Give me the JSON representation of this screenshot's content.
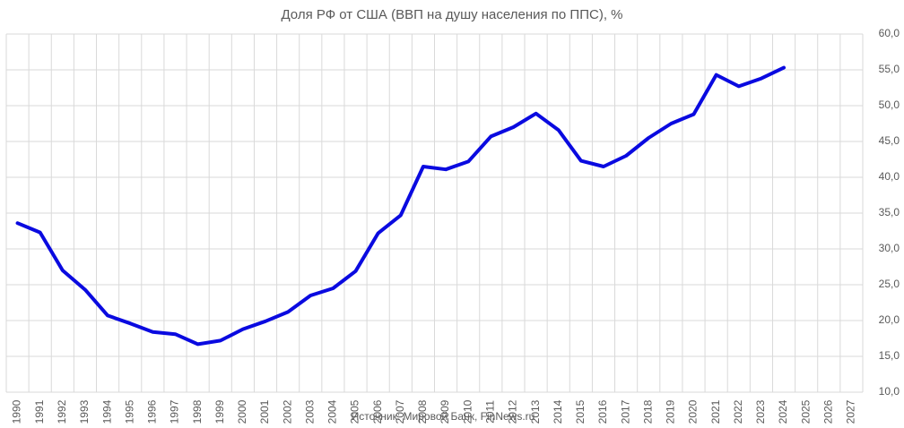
{
  "chart_data": {
    "type": "line",
    "title": "Доля РФ от США (ВВП на душу населения по ППС), %",
    "source": "Источник: Мировой Банк, FinNews.ru",
    "categories": [
      "1990",
      "1991",
      "1992",
      "1993",
      "1994",
      "1995",
      "1996",
      "1997",
      "1998",
      "1999",
      "2000",
      "2001",
      "2002",
      "2003",
      "2004",
      "2005",
      "2006",
      "2007",
      "2008",
      "2009",
      "2010",
      "2011",
      "2012",
      "2013",
      "2014",
      "2015",
      "2016",
      "2017",
      "2018",
      "2019",
      "2020",
      "2021",
      "2022",
      "2023",
      "2024",
      "2025",
      "2026",
      "2027"
    ],
    "values": [
      33.6,
      32.3,
      27.0,
      24.3,
      20.7,
      19.6,
      18.4,
      18.1,
      16.7,
      17.2,
      18.8,
      19.9,
      21.2,
      23.5,
      24.5,
      26.9,
      32.2,
      34.7,
      41.5,
      41.1,
      42.2,
      45.7,
      47.0,
      48.9,
      46.6,
      42.3,
      41.5,
      43.0,
      45.5,
      47.5,
      48.8,
      54.3,
      52.7,
      53.8,
      55.3,
      null,
      null,
      null
    ],
    "color": "#0a0ae0",
    "ylim": [
      10,
      60
    ],
    "yticks": [
      {
        "value": 10,
        "label": "10,0"
      },
      {
        "value": 15,
        "label": "15,0"
      },
      {
        "value": 20,
        "label": "20,0"
      },
      {
        "value": 25,
        "label": "25,0"
      },
      {
        "value": 30,
        "label": "30,0"
      },
      {
        "value": 35,
        "label": "35,0"
      },
      {
        "value": 40,
        "label": "40,0"
      },
      {
        "value": 45,
        "label": "45,0"
      },
      {
        "value": 50,
        "label": "50,0"
      },
      {
        "value": 55,
        "label": "55,0"
      },
      {
        "value": 60,
        "label": "60,0"
      }
    ],
    "grid": true
  }
}
